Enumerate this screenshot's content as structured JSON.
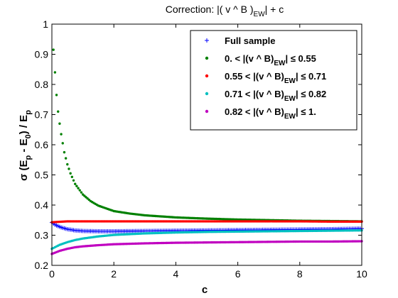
{
  "chart_data": {
    "type": "scatter",
    "title": {
      "main": "Correction:  |( v ^ B )",
      "sub": "EW",
      "tail": "| + c"
    },
    "xlabel": "c",
    "ylabel": {
      "p1": "σ (E",
      "s1": "p",
      "p2": " - E",
      "s2": "0",
      "p3": ") / E",
      "s3": "p"
    },
    "xlim": [
      0,
      10
    ],
    "ylim": [
      0.2,
      1.0
    ],
    "x_ticks": [
      0,
      2,
      4,
      6,
      8,
      10
    ],
    "y_ticks": [
      0.2,
      0.3,
      0.4,
      0.5,
      0.6,
      0.7,
      0.8,
      0.9,
      1.0
    ],
    "x_tick_labels": [
      "0",
      "2",
      "4",
      "6",
      "8",
      "10"
    ],
    "y_tick_labels": [
      "0.2",
      "0.3",
      "0.4",
      "0.5",
      "0.6",
      "0.7",
      "0.8",
      "0.9",
      "1"
    ],
    "grid": false,
    "legend_position": "top-right",
    "series": [
      {
        "label": {
          "a": "Full sample"
        },
        "marker": "+",
        "color": "#0000ff",
        "x": [
          0,
          0.1,
          0.2,
          0.3,
          0.5,
          0.75,
          1,
          1.5,
          2,
          3,
          4,
          5,
          6,
          7,
          8,
          9,
          10
        ],
        "y": [
          0.342,
          0.335,
          0.33,
          0.326,
          0.32,
          0.316,
          0.314,
          0.313,
          0.313,
          0.314,
          0.315,
          0.316,
          0.317,
          0.318,
          0.319,
          0.32,
          0.322
        ]
      },
      {
        "label": {
          "a": "0. < |(v ^ B)",
          "b": "EW",
          "c": "| ≤ 0.55"
        },
        "marker": "dot",
        "color": "#008000",
        "x": [
          0.05,
          0.1,
          0.15,
          0.2,
          0.25,
          0.3,
          0.4,
          0.5,
          0.6,
          0.75,
          1,
          1.25,
          1.5,
          2,
          2.5,
          3,
          4,
          5,
          6,
          7,
          8,
          9,
          10
        ],
        "y": [
          0.915,
          0.84,
          0.765,
          0.71,
          0.67,
          0.635,
          0.575,
          0.535,
          0.505,
          0.47,
          0.435,
          0.413,
          0.398,
          0.38,
          0.372,
          0.366,
          0.359,
          0.355,
          0.352,
          0.35,
          0.348,
          0.347,
          0.346
        ]
      },
      {
        "label": {
          "a": "0.55 < |(v ^ B)",
          "b": "EW",
          "c": "| ≤ 0.71"
        },
        "marker": "dot",
        "color": "#ff0000",
        "x": [
          0,
          0.5,
          1,
          2,
          3,
          4,
          5,
          6,
          7,
          8,
          9,
          10
        ],
        "y": [
          0.343,
          0.346,
          0.346,
          0.346,
          0.346,
          0.346,
          0.346,
          0.346,
          0.346,
          0.346,
          0.345,
          0.345
        ]
      },
      {
        "label": {
          "a": "0.71 < |(v ^ B)",
          "b": "EW",
          "c": "| ≤ 0.82"
        },
        "marker": "dot",
        "color": "#00c0c0",
        "x": [
          0,
          0.25,
          0.5,
          0.75,
          1,
          1.5,
          2,
          3,
          4,
          5,
          6,
          7,
          8,
          9,
          10
        ],
        "y": [
          0.255,
          0.268,
          0.277,
          0.284,
          0.289,
          0.296,
          0.301,
          0.306,
          0.309,
          0.311,
          0.312,
          0.313,
          0.314,
          0.315,
          0.316
        ]
      },
      {
        "label": {
          "a": "0.82 < |(v ^ B)",
          "b": "EW",
          "c": "| ≤ 1."
        },
        "marker": "dot",
        "color": "#c000c0",
        "x": [
          0,
          0.25,
          0.5,
          0.75,
          1,
          1.5,
          2,
          3,
          4,
          5,
          6,
          7,
          8,
          9,
          10
        ],
        "y": [
          0.238,
          0.248,
          0.255,
          0.26,
          0.263,
          0.267,
          0.27,
          0.273,
          0.275,
          0.276,
          0.277,
          0.278,
          0.279,
          0.279,
          0.28
        ]
      }
    ]
  }
}
